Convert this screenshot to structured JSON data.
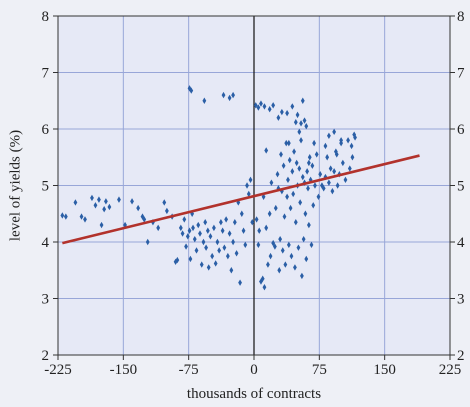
{
  "chart_data": {
    "type": "scatter",
    "title": "",
    "xlabel": "thousands of contracts",
    "ylabel": "level of yields (%)",
    "xlim": [
      -225,
      225
    ],
    "ylim": [
      2,
      8
    ],
    "xticks": [
      -225,
      -150,
      -75,
      0,
      75,
      150,
      225
    ],
    "yticks": [
      2,
      3,
      4,
      5,
      6,
      7,
      8
    ],
    "xtick_labels": [
      "-225",
      "-150",
      "-75",
      "0",
      "75",
      "150",
      "225"
    ],
    "ytick_labels": [
      "2",
      "3",
      "4",
      "5",
      "6",
      "7",
      "8"
    ],
    "grid": true,
    "zero_line": true,
    "series": [
      {
        "type": "scatter",
        "color": "#2b5fa6",
        "marker": "diamond",
        "points": [
          [
            -220,
            4.47
          ],
          [
            -216,
            4.45
          ],
          [
            -205,
            4.7
          ],
          [
            -198,
            4.45
          ],
          [
            -194,
            4.4
          ],
          [
            -186,
            4.78
          ],
          [
            -182,
            4.65
          ],
          [
            -178,
            4.75
          ],
          [
            -175,
            4.3
          ],
          [
            -172,
            4.58
          ],
          [
            -170,
            4.72
          ],
          [
            -166,
            4.62
          ],
          [
            -155,
            4.75
          ],
          [
            -148,
            4.3
          ],
          [
            -140,
            4.72
          ],
          [
            -133,
            4.6
          ],
          [
            -128,
            4.45
          ],
          [
            -126,
            4.4
          ],
          [
            -122,
            4.0
          ],
          [
            -116,
            4.35
          ],
          [
            -110,
            4.25
          ],
          [
            -103,
            4.7
          ],
          [
            -100,
            4.55
          ],
          [
            -94,
            4.45
          ],
          [
            -90,
            3.65
          ],
          [
            -88,
            3.68
          ],
          [
            -84,
            4.25
          ],
          [
            -82,
            4.15
          ],
          [
            -80,
            4.4
          ],
          [
            -78,
            3.92
          ],
          [
            -76,
            4.1
          ],
          [
            -74,
            4.2
          ],
          [
            -73,
            3.7
          ],
          [
            -71,
            4.5
          ],
          [
            -70,
            4.25
          ],
          [
            -68,
            4.05
          ],
          [
            -66,
            3.85
          ],
          [
            -64,
            4.3
          ],
          [
            -62,
            4.15
          ],
          [
            -60,
            3.6
          ],
          [
            -58,
            4.0
          ],
          [
            -56,
            4.35
          ],
          [
            -55,
            3.9
          ],
          [
            -53,
            4.2
          ],
          [
            -52,
            3.55
          ],
          [
            -50,
            4.1
          ],
          [
            -48,
            3.75
          ],
          [
            -46,
            4.25
          ],
          [
            -44,
            3.62
          ],
          [
            -42,
            4.0
          ],
          [
            -40,
            3.85
          ],
          [
            -38,
            4.35
          ],
          [
            -36,
            4.2
          ],
          [
            -34,
            3.9
          ],
          [
            -32,
            4.4
          ],
          [
            -30,
            3.75
          ],
          [
            -28,
            4.15
          ],
          [
            -26,
            3.5
          ],
          [
            -24,
            4.0
          ],
          [
            -22,
            4.35
          ],
          [
            -20,
            3.8
          ],
          [
            -18,
            4.7
          ],
          [
            -16,
            3.28
          ],
          [
            -14,
            4.5
          ],
          [
            -12,
            4.2
          ],
          [
            -10,
            3.95
          ],
          [
            -8,
            5.0
          ],
          [
            -6,
            4.85
          ],
          [
            -4,
            5.1
          ],
          [
            -2,
            4.35
          ],
          [
            -74,
            6.72
          ],
          [
            -72,
            6.68
          ],
          [
            -57,
            6.5
          ],
          [
            -35,
            6.6
          ],
          [
            -28,
            6.55
          ],
          [
            -24,
            6.6
          ],
          [
            2,
            6.42
          ],
          [
            5,
            6.38
          ],
          [
            8,
            6.45
          ],
          [
            12,
            6.4
          ],
          [
            14,
            5.62
          ],
          [
            18,
            6.35
          ],
          [
            22,
            6.42
          ],
          [
            28,
            6.2
          ],
          [
            32,
            6.3
          ],
          [
            38,
            6.28
          ],
          [
            40,
            5.75
          ],
          [
            44,
            6.4
          ],
          [
            48,
            6.12
          ],
          [
            50,
            6.25
          ],
          [
            52,
            5.95
          ],
          [
            54,
            6.1
          ],
          [
            56,
            6.5
          ],
          [
            58,
            6.15
          ],
          [
            60,
            6.05
          ],
          [
            63,
            5.4
          ],
          [
            3,
            4.4
          ],
          [
            5,
            3.95
          ],
          [
            6,
            4.2
          ],
          [
            8,
            3.3
          ],
          [
            10,
            3.35
          ],
          [
            11,
            4.8
          ],
          [
            12,
            3.2
          ],
          [
            14,
            4.25
          ],
          [
            16,
            3.6
          ],
          [
            18,
            4.5
          ],
          [
            19,
            3.75
          ],
          [
            20,
            5.05
          ],
          [
            22,
            3.98
          ],
          [
            24,
            3.92
          ],
          [
            25,
            4.6
          ],
          [
            27,
            5.2
          ],
          [
            28,
            4.95
          ],
          [
            29,
            3.5
          ],
          [
            30,
            4.05
          ],
          [
            31,
            5.55
          ],
          [
            32,
            4.9
          ],
          [
            33,
            3.85
          ],
          [
            34,
            5.35
          ],
          [
            35,
            4.45
          ],
          [
            36,
            3.6
          ],
          [
            37,
            5.75
          ],
          [
            38,
            4.8
          ],
          [
            39,
            5.1
          ],
          [
            40,
            3.95
          ],
          [
            41,
            5.45
          ],
          [
            42,
            4.6
          ],
          [
            43,
            3.75
          ],
          [
            44,
            5.25
          ],
          [
            45,
            4.85
          ],
          [
            46,
            5.6
          ],
          [
            47,
            3.55
          ],
          [
            48,
            4.35
          ],
          [
            49,
            5.4
          ],
          [
            50,
            5.0
          ],
          [
            51,
            3.9
          ],
          [
            52,
            5.3
          ],
          [
            53,
            4.7
          ],
          [
            54,
            5.8
          ],
          [
            55,
            3.4
          ],
          [
            56,
            5.15
          ],
          [
            57,
            4.05
          ],
          [
            58,
            5.05
          ],
          [
            59,
            4.5
          ],
          [
            60,
            3.7
          ],
          [
            61,
            5.25
          ],
          [
            62,
            4.95
          ],
          [
            63,
            4.3
          ],
          [
            64,
            5.5
          ],
          [
            65,
            5.1
          ],
          [
            66,
            3.95
          ],
          [
            67,
            5.35
          ],
          [
            68,
            4.65
          ],
          [
            69,
            5.75
          ],
          [
            70,
            5.0
          ],
          [
            72,
            5.55
          ],
          [
            74,
            4.8
          ],
          [
            76,
            5.2
          ],
          [
            78,
            5.0
          ],
          [
            80,
            4.95
          ],
          [
            82,
            5.15
          ],
          [
            84,
            5.5
          ],
          [
            86,
            5.05
          ],
          [
            88,
            5.3
          ],
          [
            90,
            4.9
          ],
          [
            92,
            5.25
          ],
          [
            94,
            5.6
          ],
          [
            96,
            5.0
          ],
          [
            98,
            5.2
          ],
          [
            100,
            5.75
          ],
          [
            102,
            5.4
          ],
          [
            105,
            5.1
          ],
          [
            108,
            5.8
          ],
          [
            110,
            5.3
          ],
          [
            112,
            5.7
          ],
          [
            113,
            5.5
          ],
          [
            115,
            5.9
          ],
          [
            116,
            5.85
          ],
          [
            82,
            5.7
          ],
          [
            86,
            5.88
          ],
          [
            92,
            5.95
          ],
          [
            95,
            5.55
          ],
          [
            100,
            5.8
          ]
        ]
      },
      {
        "type": "line",
        "color": "#b2322c",
        "points": [
          [
            -220,
            3.98
          ],
          [
            190,
            5.53
          ]
        ]
      }
    ]
  }
}
